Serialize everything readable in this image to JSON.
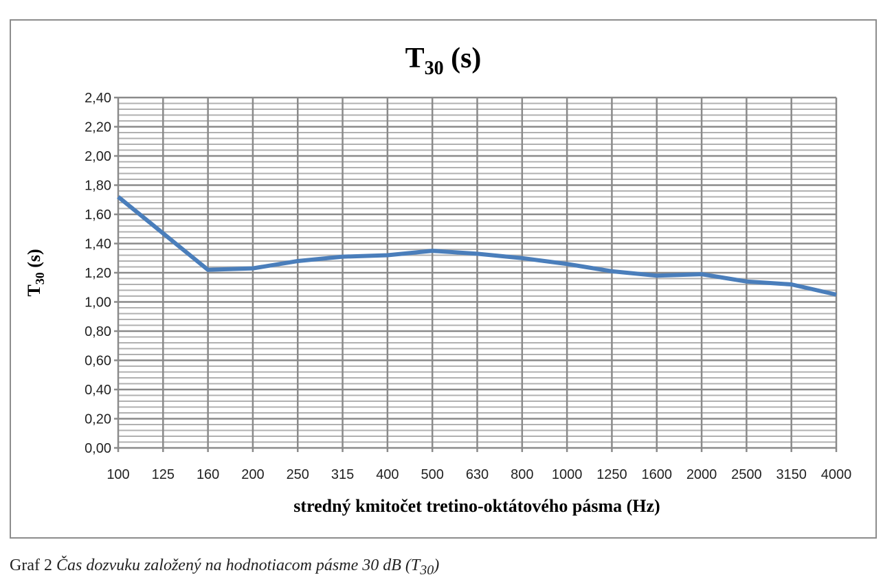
{
  "chart_data": {
    "type": "line",
    "title_main": "T",
    "title_sub": "30",
    "title_tail": " (s)",
    "ylabel_main": "T",
    "ylabel_sub": "30",
    "ylabel_tail": " (s)",
    "xlabel": "stredný kmitočet tretino-oktátového pásma (Hz)",
    "categories": [
      "100",
      "125",
      "160",
      "200",
      "250",
      "315",
      "400",
      "500",
      "630",
      "800",
      "1000",
      "1250",
      "1600",
      "2000",
      "2500",
      "3150",
      "4000"
    ],
    "series": [
      {
        "name": "T30",
        "color": "#4a7ebb",
        "values": [
          1.72,
          1.47,
          1.22,
          1.23,
          1.28,
          1.31,
          1.32,
          1.35,
          1.33,
          1.3,
          1.26,
          1.21,
          1.18,
          1.19,
          1.14,
          1.12,
          1.05
        ]
      }
    ],
    "ylim": [
      0,
      2.4
    ],
    "ymajor": 0.2,
    "yminor": 0.04,
    "yticks": [
      "0,00",
      "0,20",
      "0,40",
      "0,60",
      "0,80",
      "1,00",
      "1,20",
      "1,40",
      "1,60",
      "1,80",
      "2,00",
      "2,20",
      "2,40"
    ],
    "grid": true,
    "legend": "none"
  },
  "caption": {
    "prefix": "Graf 2 ",
    "text": "Čas dozvuku založený na hodnotiacom pásme 30 dB (T",
    "sub": "30",
    "tail": ")"
  }
}
